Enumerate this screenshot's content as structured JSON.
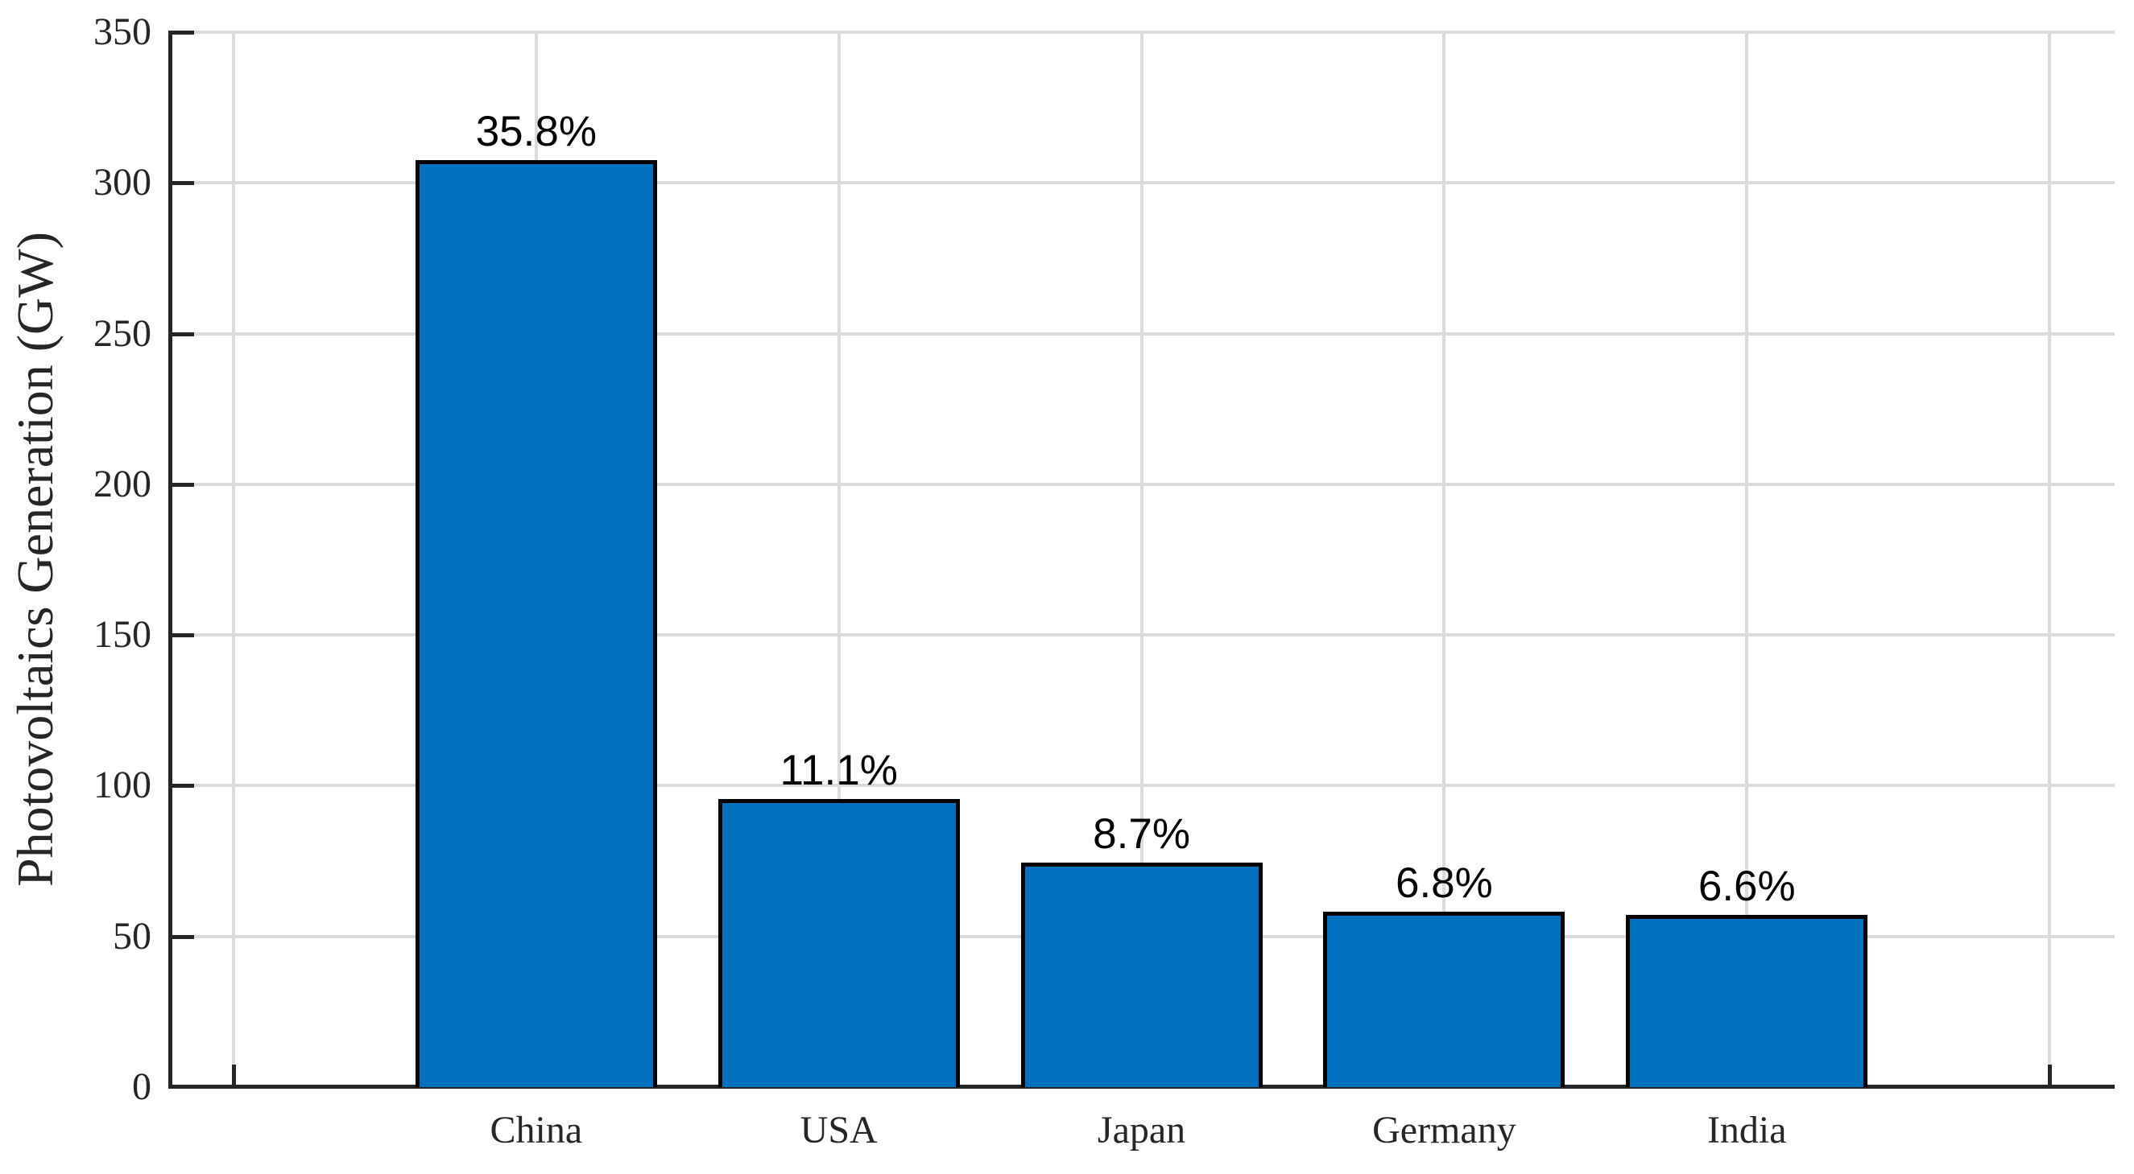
{
  "chart_data": {
    "type": "bar",
    "title": "",
    "xlabel": "",
    "ylabel": "Photovoltaics Generation (GW)",
    "categories": [
      "China",
      "USA",
      "Japan",
      "Germany",
      "India"
    ],
    "values_gw": [
      307.5,
      95.5,
      74.5,
      58.2,
      57.0
    ],
    "bar_labels": [
      "35.8%",
      "11.1%",
      "8.7%",
      "6.8%",
      "6.6%"
    ],
    "ylim": [
      0,
      350
    ],
    "yticks": [
      0,
      50,
      100,
      150,
      200,
      250,
      300,
      350
    ],
    "ytick_labels": [
      "0",
      "50",
      "100",
      "150",
      "200",
      "250",
      "300",
      "350"
    ],
    "grid": true,
    "legend": "none",
    "bar_width_fraction": 0.8,
    "colors": {
      "bar_fill": "#0072BD",
      "bar_edge": "#000000",
      "grid": "#DBDBDB",
      "axis": "#262626",
      "tick_label": "#262626",
      "value_label": "#000000",
      "background": "#FFFFFF"
    }
  }
}
